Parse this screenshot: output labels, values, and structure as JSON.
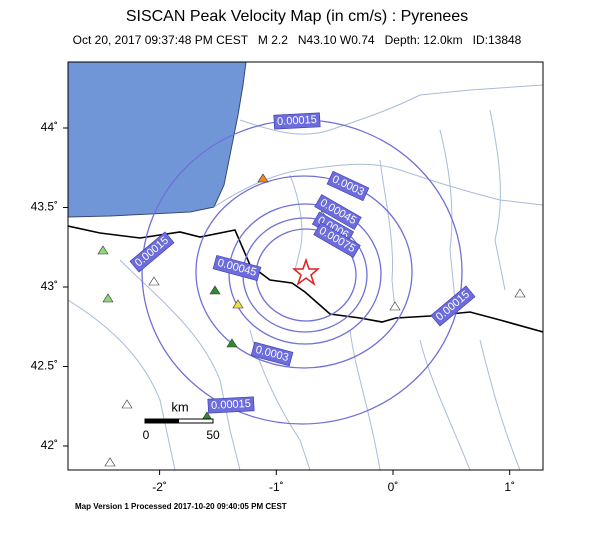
{
  "header": {
    "title": "SISCAN Peak Velocity Map (in cm/s) : Pyrenees",
    "subtitle": "Oct 20, 2017 09:37:48 PM CEST   M 2.2   N43.10 W0.74   Depth: 12.0km   ID:13848"
  },
  "map": {
    "xticks": [
      {
        "value": -2,
        "label": "-2˚"
      },
      {
        "value": -1,
        "label": "-1˚"
      },
      {
        "value": 0,
        "label": "0˚"
      },
      {
        "value": 1,
        "label": "1˚"
      }
    ],
    "yticks": [
      {
        "value": 42,
        "label": "42˚"
      },
      {
        "value": 42.5,
        "label": "42.5˚"
      },
      {
        "value": 43,
        "label": "43˚"
      },
      {
        "value": 43.5,
        "label": "43.5˚"
      },
      {
        "value": 44,
        "label": "44˚"
      }
    ],
    "contour_labels": [
      0.00015,
      0.0003,
      0.00045,
      0.0006,
      0.00075,
      0.00045,
      0.00015,
      0.00015,
      0.0003,
      0.00015
    ],
    "scale": {
      "unit": "km",
      "labels": [
        0,
        50
      ]
    }
  },
  "footer": "Map Version 1 Processed 2017-10-20 09:40:05 PM CEST"
}
